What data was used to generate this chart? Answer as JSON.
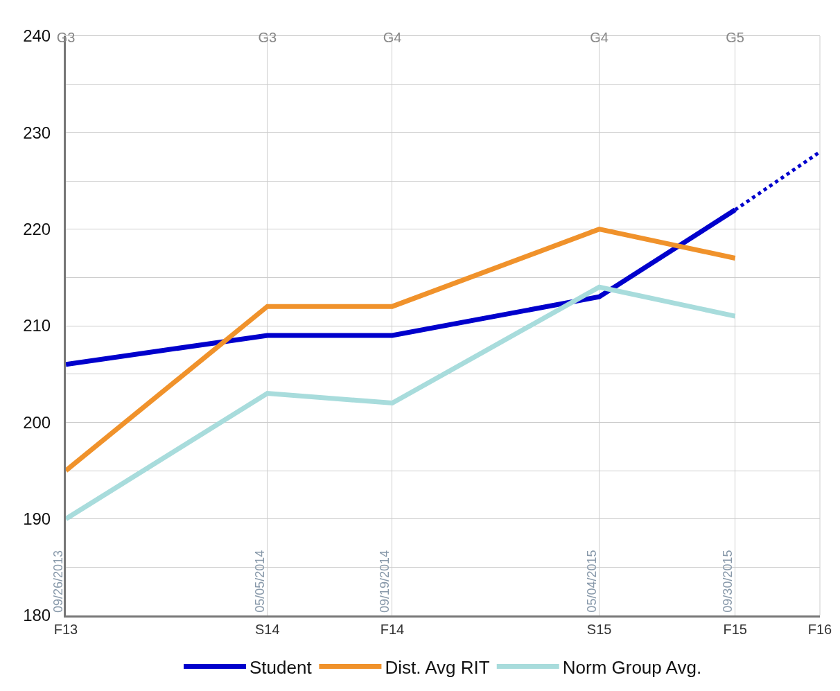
{
  "chart_data": {
    "type": "line",
    "x": [
      "2013-09-26",
      "2014-05-05",
      "2014-09-19",
      "2015-05-04",
      "2015-09-30"
    ],
    "series": [
      {
        "name": "Student",
        "color": "#0000cc",
        "values": [
          206,
          209,
          209,
          213,
          222
        ]
      },
      {
        "name": "Dist. Avg RIT",
        "color": "#f0922b",
        "values": [
          195,
          212,
          212,
          220,
          217
        ]
      },
      {
        "name": "Norm Group Avg.",
        "color": "#a8dcdc",
        "values": [
          190,
          203,
          202,
          214,
          211
        ]
      },
      {
        "color": "#0000cc",
        "line_style": "dotted",
        "x": [
          "2015-09-30",
          "2016-01-01"
        ],
        "values": [
          222,
          228
        ]
      }
    ],
    "xlim": [
      "2013-09-26",
      "2016-01-01"
    ],
    "xticks": [
      {
        "value": "2013-09-26",
        "label": "F13"
      },
      {
        "value": "2014-05-05",
        "label": "S14"
      },
      {
        "value": "2014-09-19",
        "label": "F14"
      },
      {
        "value": "2015-05-04",
        "label": "S15"
      },
      {
        "value": "2015-09-30",
        "label": "F15"
      },
      {
        "value": "2016-01-01",
        "label": "F16"
      }
    ],
    "x2lim": [
      "2013-09-26",
      "2016-01-01"
    ],
    "x2ticks": [
      {
        "value": "2013-09-26",
        "label": "G3"
      },
      {
        "value": "2014-05-05",
        "label": "G3"
      },
      {
        "value": "2014-09-19",
        "label": "G4"
      },
      {
        "value": "2015-05-04",
        "label": "G4"
      },
      {
        "value": "2015-09-30",
        "label": "G5"
      }
    ],
    "ylim": [
      180,
      240
    ],
    "yticks": [
      180,
      {
        "value": 185,
        "label": null
      },
      190,
      {
        "value": 195,
        "label": null
      },
      200,
      {
        "value": 205,
        "label": null
      },
      210,
      {
        "value": 215,
        "label": null
      },
      220,
      {
        "value": 225,
        "label": null
      },
      230,
      {
        "value": 235,
        "label": null
      },
      240
    ],
    "annotations": [
      "09/26/2013",
      "05/05/2014",
      "09/19/2014",
      "05/04/2015",
      "09/30/2015"
    ],
    "grid": true,
    "legend": "bottom",
    "marker": "none",
    "line_style": "solid"
  }
}
